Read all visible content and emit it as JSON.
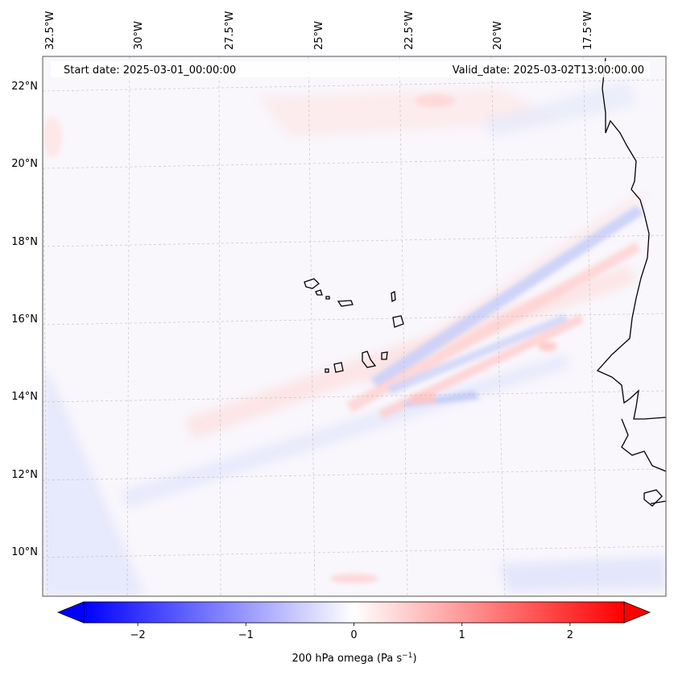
{
  "header": {
    "start_date": "Start date: 2025-03-01_00:00:00",
    "valid_date": "Valid_date: 2025-03-02T13:00:00.00"
  },
  "map": {
    "lon_labels": [
      "32.5°W",
      "30°W",
      "27.5°W",
      "25°W",
      "22.5°W",
      "20°W",
      "17.5°W"
    ],
    "lat_labels": [
      "22°N",
      "20°N",
      "18°N",
      "16°N",
      "14°N",
      "12°N",
      "10°N"
    ],
    "lon_range": [
      -32.75,
      -15.5
    ],
    "lat_range": [
      8.9,
      22.8
    ],
    "field": "200 hPa omega"
  },
  "colorbar": {
    "title": "200 hPa omega (Pa s",
    "unit_exponent": "−1",
    "title_close": ")",
    "range": [
      -2.5,
      2.5
    ],
    "extend": "both",
    "ticks": [
      {
        "value": -2,
        "label": "−2"
      },
      {
        "value": -1,
        "label": "−1"
      },
      {
        "value": 0,
        "label": "0"
      },
      {
        "value": 1,
        "label": "1"
      },
      {
        "value": 2,
        "label": "2"
      }
    ],
    "colors": {
      "negative": "#0000ff",
      "zero": "#ffffff",
      "positive": "#ff0000"
    }
  }
}
